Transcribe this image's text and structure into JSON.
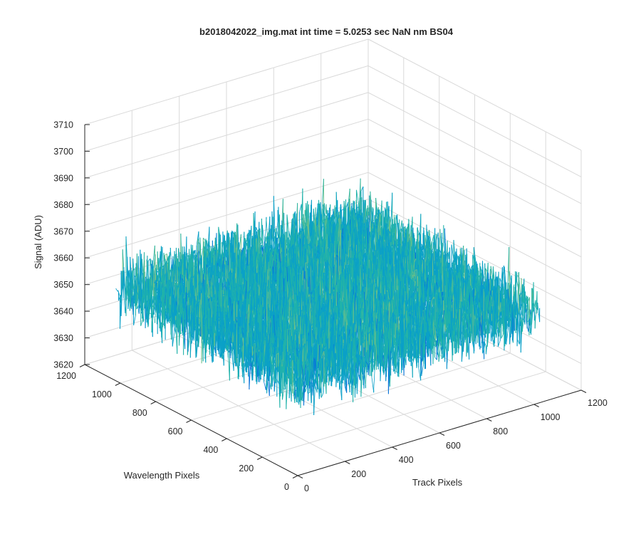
{
  "chart_data": {
    "type": "surface",
    "title": "b2018042022_img.mat int time = 5.0253 sec  NaN nm BS04",
    "xlabel": "Track Pixels",
    "ylabel": "Wavelength Pixels",
    "zlabel": "Signal (ADU)",
    "xlim": [
      0,
      1200
    ],
    "ylim": [
      0,
      1200
    ],
    "zlim": [
      3620,
      3710
    ],
    "x_ticks": [
      "0",
      "200",
      "400",
      "600",
      "800",
      "1000",
      "1200"
    ],
    "y_ticks": [
      "0",
      "200",
      "400",
      "600",
      "800",
      "1000",
      "1200"
    ],
    "z_ticks": [
      "3620",
      "3630",
      "3640",
      "3650",
      "3660",
      "3670",
      "3680",
      "3690",
      "3700",
      "3710"
    ],
    "data_extent": {
      "x": [
        0,
        1024
      ],
      "y": [
        0,
        1024
      ]
    },
    "signal_mean": 3655,
    "signal_range": [
      3615,
      3708
    ],
    "colormap": [
      "#0d47d8",
      "#0a74d8",
      "#0aa0c8",
      "#20b2aa",
      "#6cc08a",
      "#c8c050",
      "#f0c030"
    ],
    "grid": true
  }
}
